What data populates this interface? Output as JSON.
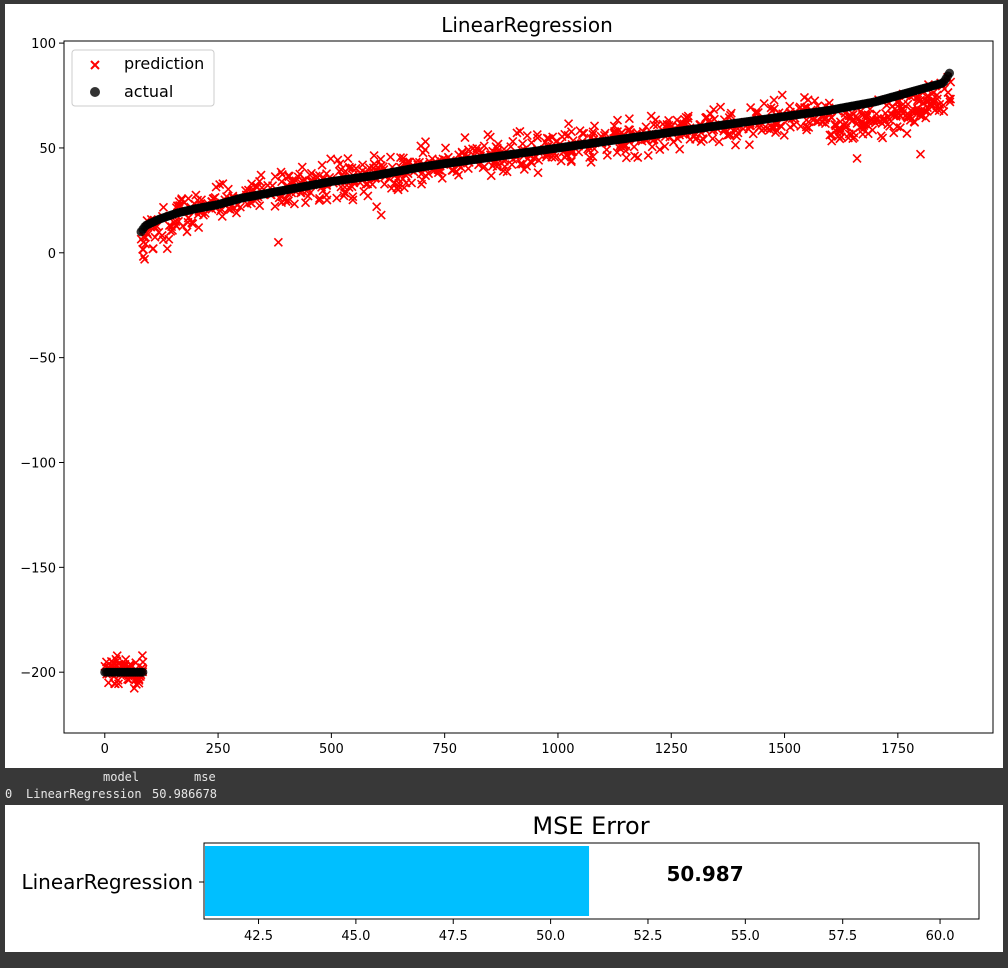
{
  "chart_data": [
    {
      "type": "scatter",
      "title": "LinearRegression",
      "xlabel": "",
      "ylabel": "",
      "xlim": [
        -90,
        1960
      ],
      "ylim": [
        -229,
        101
      ],
      "xticks": [
        "0",
        "250",
        "500",
        "750",
        "1000",
        "1250",
        "1500",
        "1750"
      ],
      "xtick_values": [
        0,
        250,
        500,
        750,
        1000,
        1250,
        1500,
        1750
      ],
      "yticks": [
        "100",
        "50",
        "0",
        "−50",
        "−100",
        "−150",
        "−200"
      ],
      "ytick_values": [
        100,
        50,
        0,
        -50,
        -100,
        -150,
        -200
      ],
      "legend_position": "upper-left",
      "series": [
        {
          "name": "prediction",
          "marker": "x",
          "color": "#ff0000",
          "cluster_1": {
            "x_range": [
              0,
              85
            ],
            "y_center": -200,
            "y_spread_low": -212,
            "y_spread_high": -184
          },
          "main": {
            "x_range": [
              80,
              1870
            ],
            "typical_deviation": 6,
            "outliers": [
              [
                383,
                5
              ],
              [
                610,
                18
              ],
              [
                600,
                22
              ],
              [
                1800,
                47
              ],
              [
                1660,
                45
              ]
            ]
          }
        },
        {
          "name": "actual",
          "marker": "o",
          "color": "#000000",
          "cluster_1": {
            "x_range": [
              0,
              85
            ],
            "y": -200
          },
          "main": {
            "x": [
              80,
              90,
              120,
              160,
              200,
              250,
              300,
              400,
              500,
              600,
              700,
              800,
              900,
              1000,
              1100,
              1200,
              1300,
              1400,
              1500,
              1600,
              1700,
              1750,
              1800,
              1850,
              1865
            ],
            "y": [
              10,
              13,
              16,
              19,
              21,
              23,
              26,
              30,
              34,
              37,
              41,
              44,
              47,
              50,
              53,
              56,
              59,
              62,
              65,
              68,
              72,
              75,
              78,
              81,
              86
            ]
          }
        }
      ]
    },
    {
      "type": "bar",
      "orientation": "horizontal",
      "title": "MSE Error",
      "categories": [
        "LinearRegression"
      ],
      "values": [
        50.987
      ],
      "value_labels": [
        "50.987"
      ],
      "xlim": [
        41.1,
        61.0
      ],
      "xticks": [
        "42.5",
        "45.0",
        "47.5",
        "50.0",
        "52.5",
        "55.0",
        "57.5",
        "60.0"
      ],
      "xtick_values": [
        42.5,
        45.0,
        47.5,
        50.0,
        52.5,
        55.0,
        57.5,
        60.0
      ],
      "bar_color": "#00bfff"
    }
  ],
  "dataframe": {
    "columns": [
      "model",
      "mse"
    ],
    "row_index": "0",
    "row_values": [
      "LinearRegression",
      "50.986678"
    ]
  }
}
